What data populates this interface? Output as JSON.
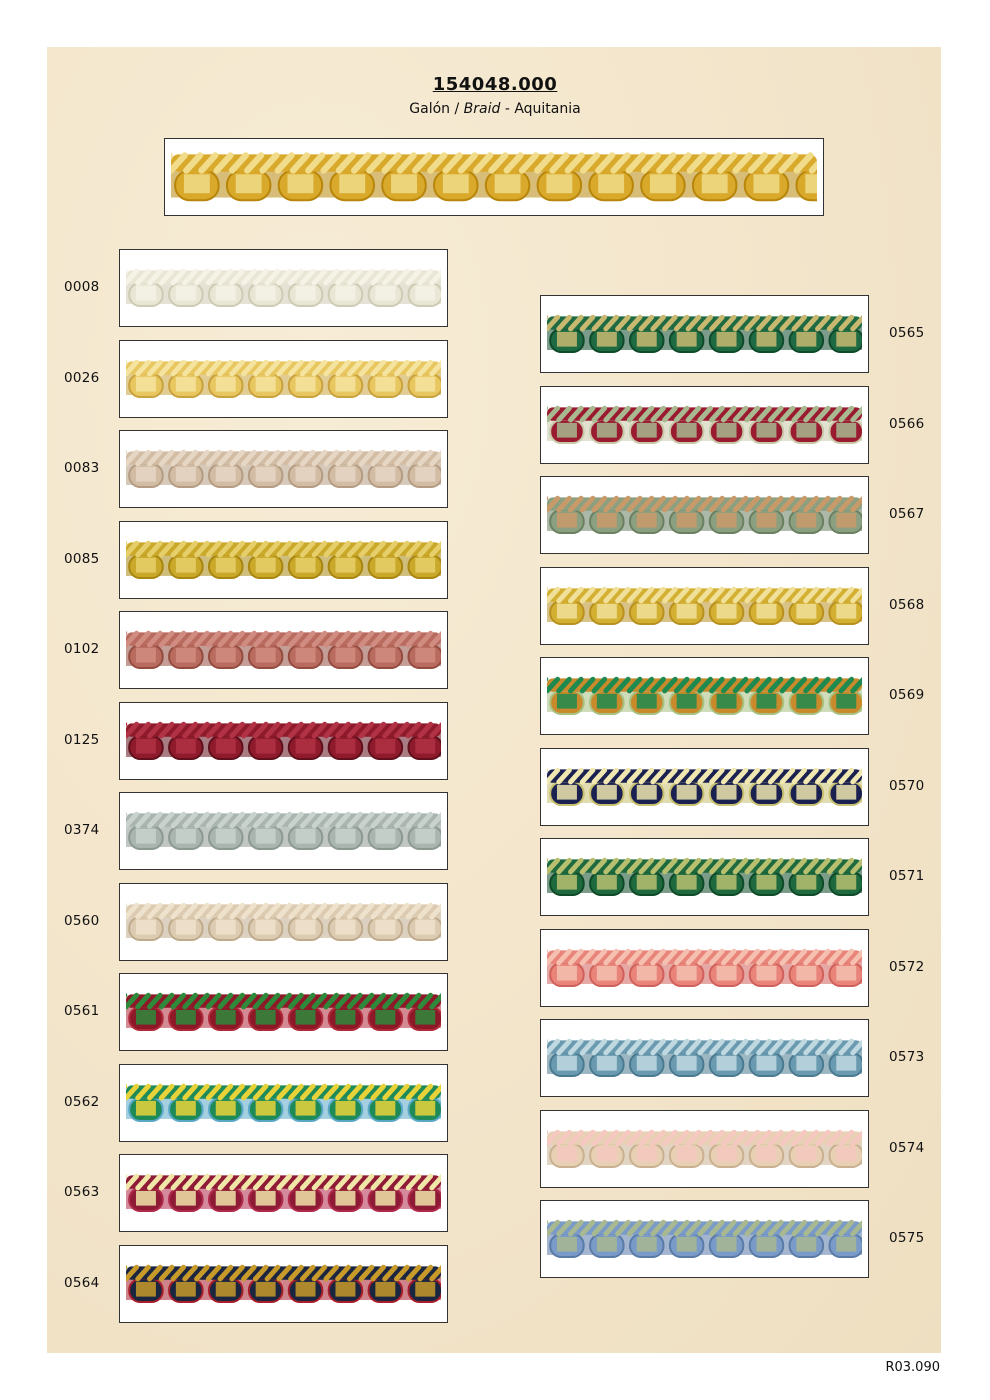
{
  "header": {
    "product_code": "154048.000",
    "subtitle_part1": "Galón / ",
    "subtitle_italic": "Braid",
    "subtitle_part2": " - Aquitania"
  },
  "featured_swatch": {
    "colors": [
      "#d8a92a",
      "#f0dc8a",
      "#b8860b"
    ]
  },
  "left_column": [
    {
      "code": "0008",
      "colors": [
        "#e9e6d6",
        "#f5f2e6",
        "#cfcab3"
      ]
    },
    {
      "code": "0026",
      "colors": [
        "#e8c760",
        "#f5e4a0",
        "#c9a23d"
      ]
    },
    {
      "code": "0083",
      "colors": [
        "#d2bca4",
        "#e6d6c4",
        "#b49c82"
      ]
    },
    {
      "code": "0085",
      "colors": [
        "#c9a82a",
        "#e6cf6a",
        "#a8860f"
      ]
    },
    {
      "code": "0102",
      "colors": [
        "#b86b5e",
        "#d08c80",
        "#944c40"
      ]
    },
    {
      "code": "0125",
      "colors": [
        "#8e1a2c",
        "#b03244",
        "#60101c"
      ]
    },
    {
      "code": "0374",
      "colors": [
        "#a9b5ae",
        "#c9d2cc",
        "#8c9990"
      ]
    },
    {
      "code": "0560",
      "colors": [
        "#dccbb0",
        "#efe2cc",
        "#bfab8c"
      ]
    },
    {
      "code": "0561",
      "colors": [
        "#8c1828",
        "#2e8a3a",
        "#b02a3a"
      ]
    },
    {
      "code": "0562",
      "colors": [
        "#1e8a58",
        "#e8d23a",
        "#5aa8c8"
      ]
    },
    {
      "code": "0563",
      "colors": [
        "#8e1a36",
        "#f0e6a8",
        "#b02a4a"
      ]
    },
    {
      "code": "0564",
      "colors": [
        "#1a2540",
        "#c89a2a",
        "#a81e2a"
      ]
    }
  ],
  "right_column": [
    {
      "code": "0565",
      "colors": [
        "#1e6a42",
        "#c8b870",
        "#0e4a2a"
      ]
    },
    {
      "code": "0566",
      "colors": [
        "#9a1a30",
        "#a8b890",
        "#c8c8a8"
      ]
    },
    {
      "code": "0567",
      "colors": [
        "#8aa080",
        "#c89a6a",
        "#6a8060"
      ]
    },
    {
      "code": "0568",
      "colors": [
        "#d4b032",
        "#f0e09a",
        "#b89020"
      ]
    },
    {
      "code": "0569",
      "colors": [
        "#c88a2a",
        "#1e8a50",
        "#a8c080"
      ]
    },
    {
      "code": "0570",
      "colors": [
        "#1a2050",
        "#f0e8b0",
        "#c8c070"
      ]
    },
    {
      "code": "0571",
      "colors": [
        "#1e6a3e",
        "#b8c070",
        "#0e4a28"
      ]
    },
    {
      "code": "0572",
      "colors": [
        "#e8847a",
        "#f5c0b0",
        "#d0605a"
      ]
    },
    {
      "code": "0573",
      "colors": [
        "#6a9ab0",
        "#c0d8e0",
        "#4a7a90"
      ]
    },
    {
      "code": "0574",
      "colors": [
        "#e8d0b4",
        "#f5c8c0",
        "#c8b090"
      ]
    },
    {
      "code": "0575",
      "colors": [
        "#7a9ac8",
        "#a8b890",
        "#5a7aa8"
      ]
    }
  ],
  "footer": {
    "reference": "R03.090"
  }
}
